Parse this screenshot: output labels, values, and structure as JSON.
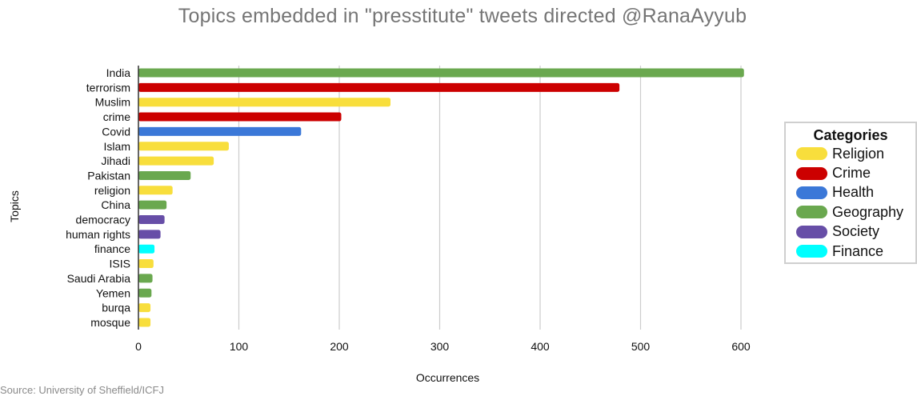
{
  "chart_data": {
    "type": "bar",
    "orientation": "horizontal",
    "title": "Topics embedded in \"presstitute\" tweets directed @RanaAyyub",
    "xlabel": "Occurrences",
    "ylabel": "Topics",
    "xlim": [
      0,
      600
    ],
    "xticks": [
      0,
      100,
      200,
      300,
      400,
      500,
      600
    ],
    "grid": "vertical",
    "legend_title": "Categories",
    "legend_position": "right",
    "legend": [
      {
        "name": "Religion",
        "color": "#f8de3c"
      },
      {
        "name": "Crime",
        "color": "#cc0000"
      },
      {
        "name": "Health",
        "color": "#3b78d8"
      },
      {
        "name": "Geography",
        "color": "#6aa84f"
      },
      {
        "name": "Society",
        "color": "#674ea7"
      },
      {
        "name": "Finance",
        "color": "#00ffff"
      }
    ],
    "bars": [
      {
        "topic": "India",
        "value": 603,
        "category": "Geography"
      },
      {
        "topic": "terrorism",
        "value": 479,
        "category": "Crime"
      },
      {
        "topic": "Muslim",
        "value": 251,
        "category": "Religion"
      },
      {
        "topic": "crime",
        "value": 202,
        "category": "Crime"
      },
      {
        "topic": "Covid",
        "value": 162,
        "category": "Health"
      },
      {
        "topic": "Islam",
        "value": 90,
        "category": "Religion"
      },
      {
        "topic": "Jihadi",
        "value": 75,
        "category": "Religion"
      },
      {
        "topic": "Pakistan",
        "value": 52,
        "category": "Geography"
      },
      {
        "topic": "religion",
        "value": 34,
        "category": "Religion"
      },
      {
        "topic": "China",
        "value": 28,
        "category": "Geography"
      },
      {
        "topic": "democracy",
        "value": 26,
        "category": "Society"
      },
      {
        "topic": "human rights",
        "value": 22,
        "category": "Society"
      },
      {
        "topic": "finance",
        "value": 16,
        "category": "Finance"
      },
      {
        "topic": "ISIS",
        "value": 15,
        "category": "Religion"
      },
      {
        "topic": "Saudi Arabia",
        "value": 14,
        "category": "Geography"
      },
      {
        "topic": "Yemen",
        "value": 13,
        "category": "Geography"
      },
      {
        "topic": "burqa",
        "value": 12,
        "category": "Religion"
      },
      {
        "topic": "mosque",
        "value": 12,
        "category": "Religion"
      }
    ]
  },
  "source": "Source: University of Sheffield/ICFJ"
}
